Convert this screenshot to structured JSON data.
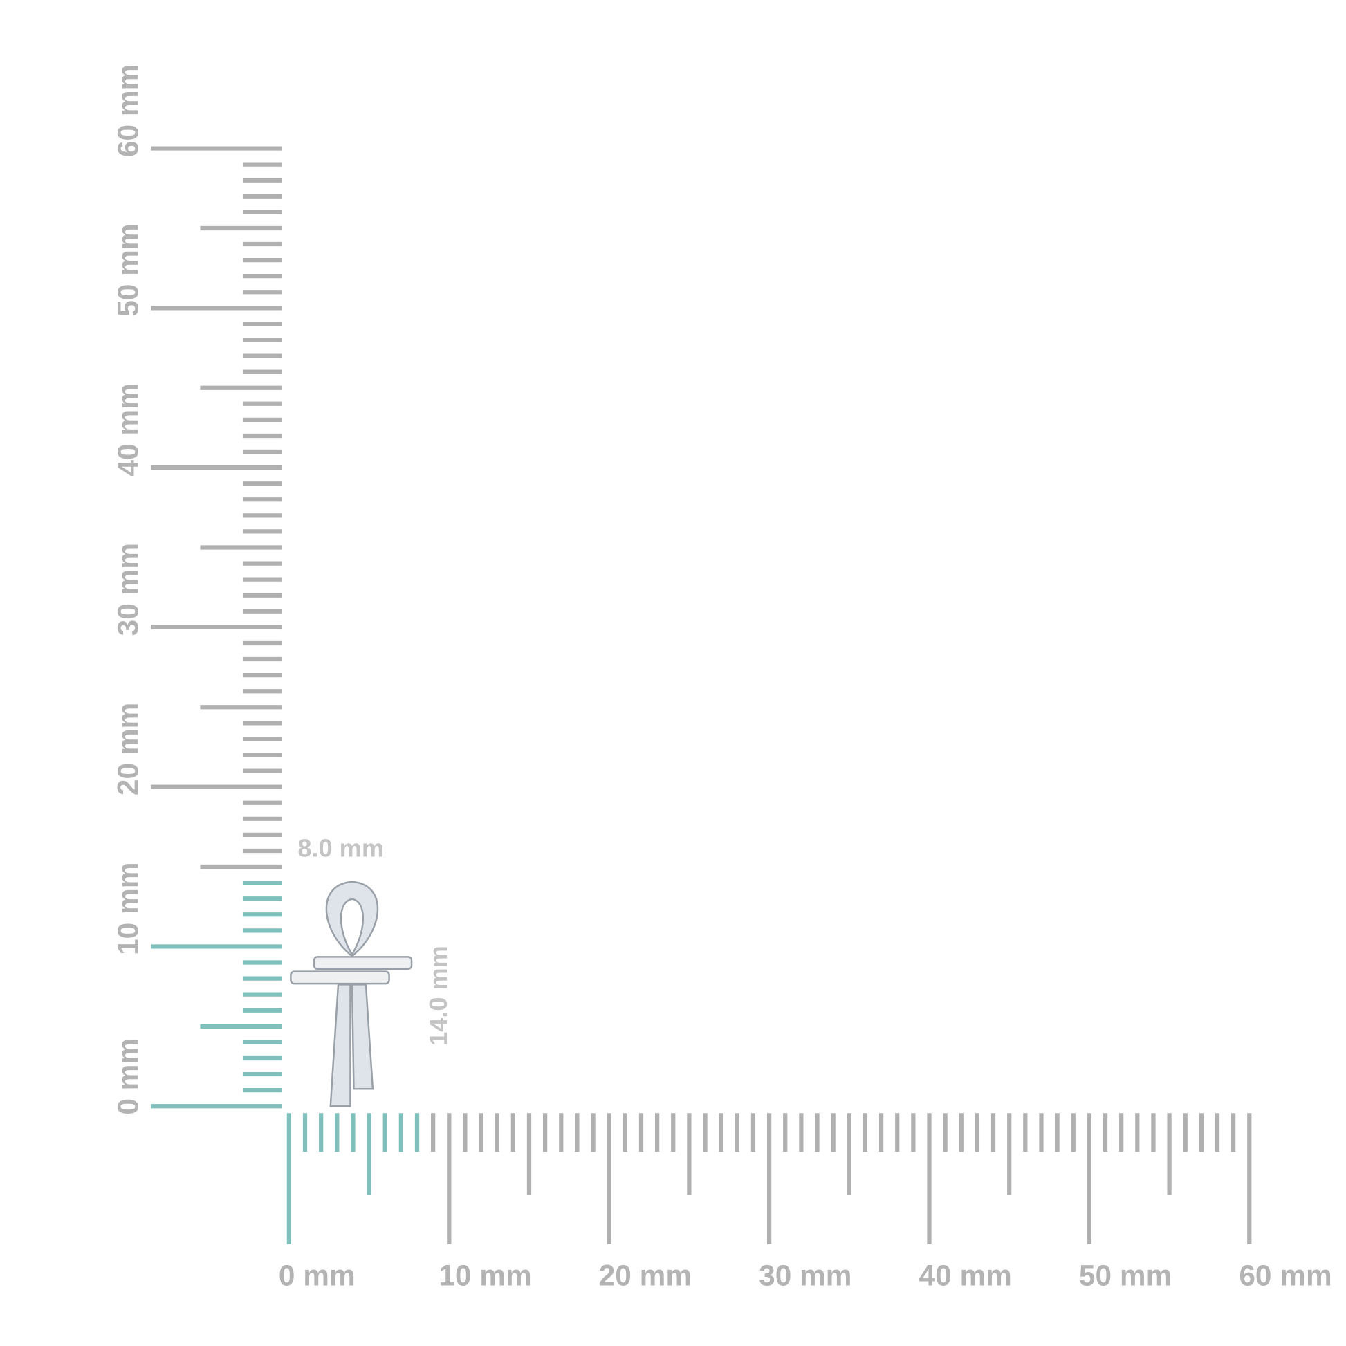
{
  "ruler": {
    "x_labels": [
      "0 mm",
      "10 mm",
      "20 mm",
      "30 mm",
      "40 mm",
      "50 mm",
      "60 mm"
    ],
    "y_labels": [
      "0 mm",
      "10 mm",
      "20 mm",
      "30 mm",
      "40 mm",
      "50 mm",
      "60 mm"
    ]
  },
  "dimensions": {
    "width": "8.0 mm",
    "height": "14.0 mm"
  }
}
